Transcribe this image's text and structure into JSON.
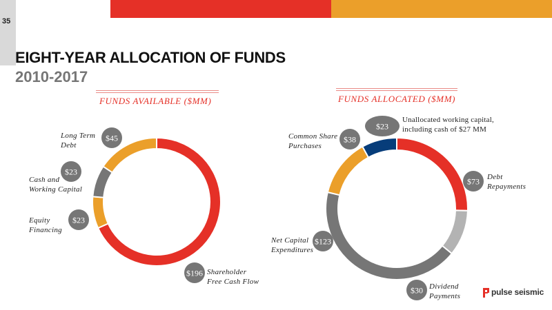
{
  "page_number": "35",
  "title": "EIGHT-YEAR ALLOCATION OF FUNDS",
  "subtitle": "2010-2017",
  "colors": {
    "red": "#e53027",
    "orange": "#eb9f2a",
    "dark_gray": "#767676",
    "light_gray": "#b3b3b3",
    "navy": "#073d7a",
    "bubble": "#767676"
  },
  "logo": {
    "text": "pulse seismic",
    "icon": "pulse-seismic-logo-icon"
  },
  "chart_data": [
    {
      "type": "pie",
      "title": "FUNDS AVAILABLE ($MM)",
      "slices": [
        {
          "label": "Shareholder Free Cash Flow",
          "value": 196,
          "value_label": "$196",
          "color": "#e53027"
        },
        {
          "label": "Equity Financing",
          "value": 23,
          "value_label": "$23",
          "color": "#eb9f2a"
        },
        {
          "label": "Cash and Working Capital",
          "value": 23,
          "value_label": "$23",
          "color": "#767676"
        },
        {
          "label": "Long Term Debt",
          "value": 45,
          "value_label": "$45",
          "color": "#eb9f2a"
        }
      ]
    },
    {
      "type": "pie",
      "title": "FUNDS ALLOCATED ($MM)",
      "slices": [
        {
          "label": "Debt Repayments",
          "value": 73,
          "value_label": "$73",
          "color": "#e53027"
        },
        {
          "label": "Dividend Payments",
          "value": 30,
          "value_label": "$30",
          "color": "#b3b3b3"
        },
        {
          "label": "Net Capital Expenditures",
          "value": 123,
          "value_label": "$123",
          "color": "#767676"
        },
        {
          "label": "Common Share Purchases",
          "value": 38,
          "value_label": "$38",
          "color": "#eb9f2a"
        },
        {
          "label": "Unallocated working capital, including cash of $27 MM",
          "value": 23,
          "value_label": "$23",
          "color": "#073d7a"
        }
      ]
    }
  ],
  "labels": {
    "left_long_term_debt": [
      "Long Term",
      "Debt"
    ],
    "left_cash_working": [
      "Cash and",
      "Working Capital"
    ],
    "left_equity": [
      "Equity",
      "Financing"
    ],
    "left_shareholder": [
      "Shareholder",
      "Free Cash Flow"
    ],
    "right_common_share": [
      "Common Share",
      "Purchases"
    ],
    "right_unallocated": [
      "Unallocated working capital,",
      "including cash of $27 MM"
    ],
    "right_debt": [
      "Debt",
      "Repayments"
    ],
    "right_net_capex": [
      "Net Capital",
      "Expenditures"
    ],
    "right_dividend": [
      "Dividend",
      "Payments"
    ]
  }
}
